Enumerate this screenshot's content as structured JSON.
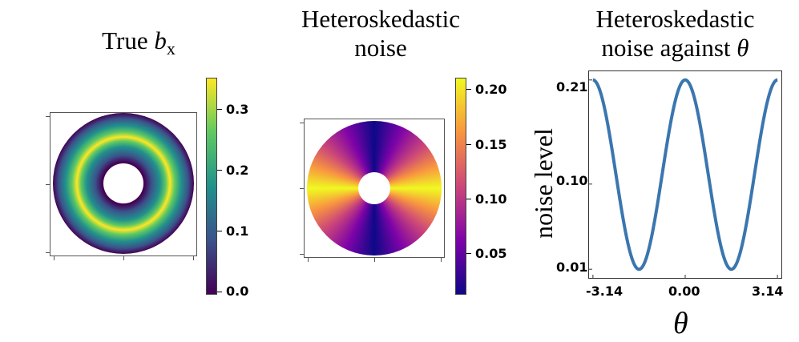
{
  "chart_data": [
    {
      "type": "heatmap",
      "title_text": "True ",
      "title_var": "b",
      "title_sub": "x",
      "colormap": "viridis",
      "colorbar_ticks": [
        "0.0",
        "0.1",
        "0.2",
        "0.3"
      ],
      "colorbar_range": [
        0.0,
        0.35
      ],
      "colors": [
        "#440154",
        "#3b528b",
        "#21918c",
        "#5ec962",
        "#fde725"
      ]
    },
    {
      "type": "heatmap",
      "title_line1": "Heteroskedastic",
      "title_line2": "noise",
      "colormap": "plasma",
      "colorbar_ticks": [
        "0.05",
        "0.10",
        "0.15",
        "0.20"
      ],
      "colorbar_range": [
        0.01,
        0.21
      ],
      "colors": [
        "#0d0887",
        "#7e03a8",
        "#cc4778",
        "#f89540",
        "#f0f921"
      ]
    },
    {
      "type": "line",
      "title_line1": "Heteroskedastic",
      "title_line2": "noise against ",
      "title_var": "θ",
      "xlabel": "θ",
      "ylabel": "noise level",
      "xticks": [
        "-3.14",
        "0.00",
        "3.14"
      ],
      "yticks": [
        "0.21",
        "0.10",
        "0.01"
      ],
      "xlim": [
        -3.3,
        3.3
      ],
      "ylim": [
        0.0,
        0.22
      ],
      "series": [
        {
          "name": "noise",
          "formula": "0.01 + 0.2*cos^2(theta)",
          "color": "#3a76af"
        }
      ]
    }
  ]
}
